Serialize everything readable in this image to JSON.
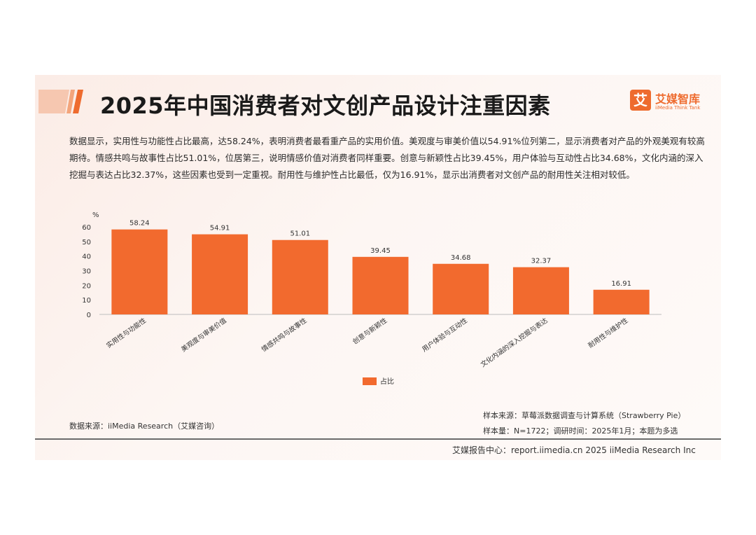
{
  "header": {
    "title": "2025年中国消费者对文创产品设计注重因素",
    "logo_mark": "艾",
    "logo_name": "艾媒智库",
    "logo_sub": "iiMedia Think Tank"
  },
  "description": "数据显示，实用性与功能性占比最高，达58.24%，表明消费者最看重产品的实用价值。美观度与审美价值以54.91%位列第二，显示消费者对产品的外观美观有较高期待。情感共鸣与故事性占比51.01%，位居第三，说明情感价值对消费者同样重要。创意与新颖性占比39.45%，用户体验与互动性占比34.68%，文化内涵的深入挖掘与表达占比32.37%，这些因素也受到一定重视。耐用性与维护性占比最低，仅为16.91%，显示出消费者对文创产品的耐用性关注相对较低。",
  "colors": {
    "bar": "#f26a2e",
    "accent": "#ee6b2e",
    "card_bg": "#fbece6"
  },
  "chart_data": {
    "type": "bar",
    "ylabel": "%",
    "ylim": [
      0,
      60
    ],
    "yticks": [
      0,
      10,
      20,
      30,
      40,
      50,
      60
    ],
    "categories": [
      "实用性与功能性",
      "美观度与审美价值",
      "情感共鸣与故事性",
      "创意与新颖性",
      "用户体验与互动性",
      "文化内涵的深入挖掘与表达",
      "耐用性与维护性"
    ],
    "series": [
      {
        "name": "占比",
        "values": [
          58.24,
          54.91,
          51.01,
          39.45,
          34.68,
          32.37,
          16.91
        ],
        "labels": [
          "58.24",
          "54.91",
          "51.01",
          "39.45",
          "34.68",
          "32.37",
          "16.91"
        ]
      }
    ],
    "legend": "bottom-center",
    "grid": false
  },
  "footer": {
    "source_left": "数据来源：iiMedia Research（艾媒咨询）",
    "sample_source": "样本来源：草莓派数据调查与计算系统（Strawberry Pie）",
    "sample_info": "样本量：N=1722；调研时间：2025年1月；本题为多选",
    "report_center": "艾媒报告中心：report.iimedia.cn 2025 iiMedia Research Inc"
  }
}
